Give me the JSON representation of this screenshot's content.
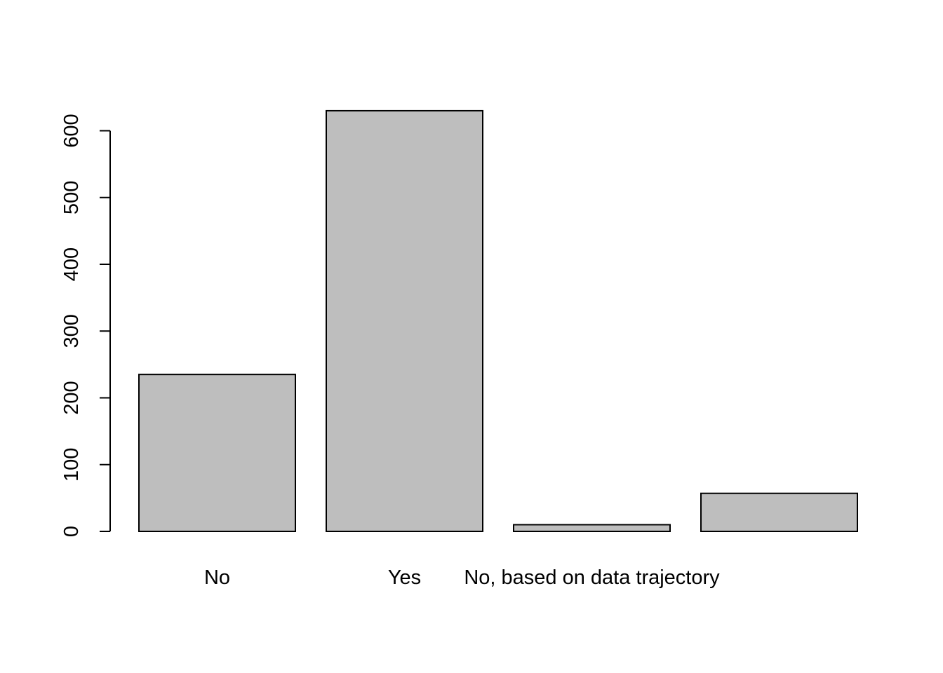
{
  "chart_data": {
    "type": "bar",
    "categories": [
      "No",
      "Yes",
      "No, based on data trajectory",
      ""
    ],
    "values": [
      235,
      630,
      10,
      57
    ],
    "title": "",
    "xlabel": "",
    "ylabel": "",
    "ylim": [
      0,
      630
    ],
    "yticks": [
      0,
      100,
      200,
      300,
      400,
      500,
      600
    ],
    "grid": false,
    "colors": {
      "bar_fill": "#bebebe",
      "bar_stroke": "#000000"
    }
  }
}
